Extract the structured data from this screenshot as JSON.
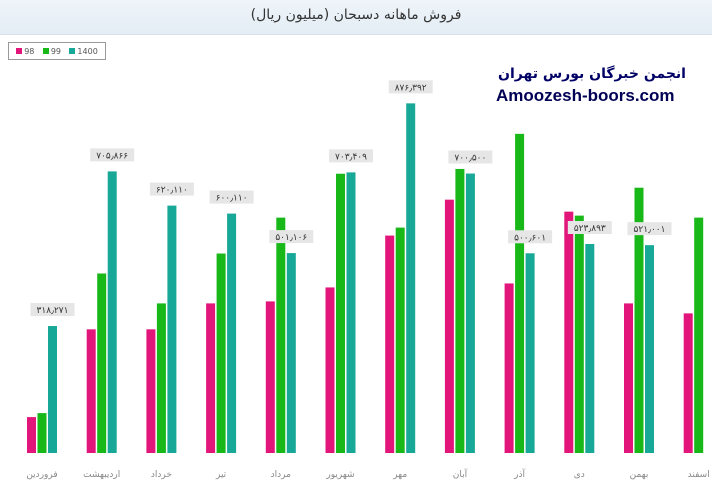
{
  "chart_data": {
    "type": "bar",
    "title": "فروش ماهانه دسبحان (میلیون ریال)",
    "categories": [
      "فروردین",
      "اردیبهشت",
      "خرداد",
      "تیر",
      "مرداد",
      "شهریور",
      "مهر",
      "آبان",
      "آذر",
      "دی",
      "بهمن",
      "اسفند"
    ],
    "series": [
      {
        "name": "98",
        "color": "#e2157b",
        "values": [
          90000,
          310000,
          310000,
          375000,
          380000,
          415000,
          545000,
          635000,
          425000,
          605000,
          375000,
          350000
        ]
      },
      {
        "name": "99",
        "color": "#18b818",
        "values": [
          100000,
          450000,
          375000,
          500000,
          590000,
          700000,
          565000,
          712000,
          800000,
          595000,
          665000,
          590000
        ]
      },
      {
        "name": "1400",
        "color": "#18a897",
        "values": [
          318271,
          705866,
          620110,
          600110,
          501106,
          703409,
          876392,
          700500,
          500601,
          523893,
          521001,
          null
        ]
      }
    ],
    "data_labels": {
      "1400": [
        "۳۱۸٫۲۷۱",
        "۷۰۵٫۸۶۶",
        "۶۲۰٫۱۱۰",
        "۶۰۰٫۱۱۰",
        "۵۰۱٫۱۰۶",
        "۷۰۳٫۴۰۹",
        "۸۷۶٫۳۹۲",
        "۷۰۰٫۵۰۰",
        "۵۰۰٫۶۰۱",
        "۵۲۳٫۸۹۳",
        "۵۲۱٫۰۰۱",
        ""
      ]
    },
    "ylim": [
      0,
      950000
    ],
    "grid": false,
    "legend_position": "top-left"
  },
  "watermark": {
    "line1": "انجمن خبرگان بورس تهران",
    "line2": "Amoozesh-boors.com"
  }
}
